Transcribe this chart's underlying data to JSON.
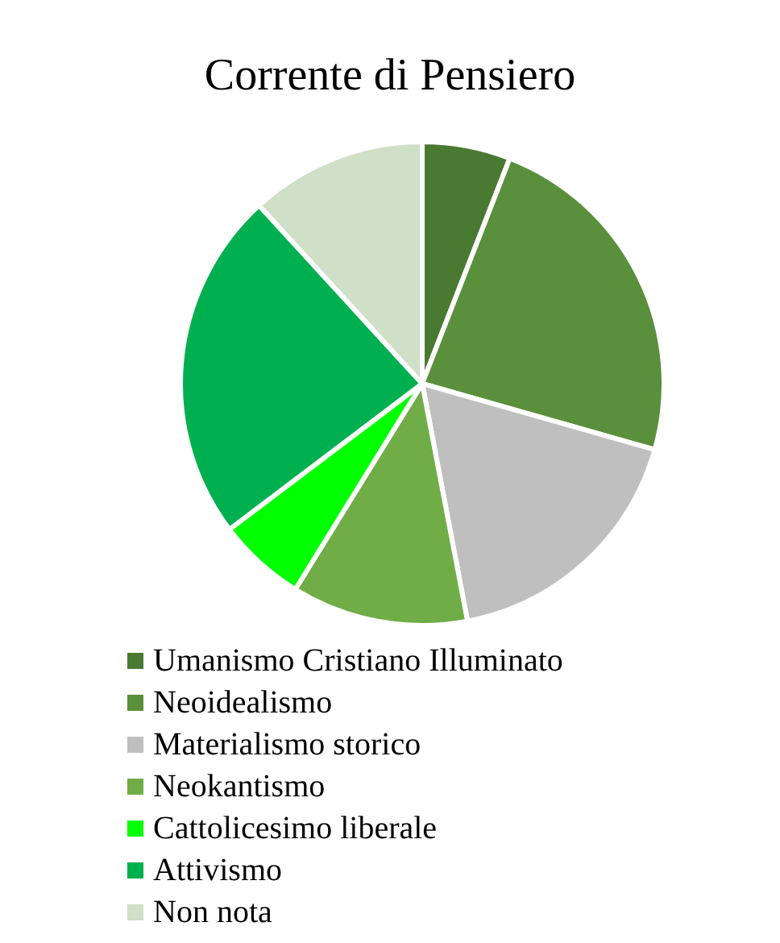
{
  "chart_data": {
    "type": "pie",
    "title": "Corrente di Pensiero",
    "categories": [
      "Umanismo Cristiano Illuminato",
      "Neoidealismo",
      "Materialismo storico",
      "Neokantismo",
      "Cattolicesimo liberale",
      "Attivismo",
      "Non nota"
    ],
    "values": [
      5.9,
      23.5,
      17.6,
      11.8,
      5.9,
      23.5,
      11.8
    ],
    "colors": [
      "#4a7a32",
      "#5a8f3c",
      "#bfbfbf",
      "#70ad47",
      "#00ff00",
      "#00b050",
      "#cfdfc8"
    ],
    "legend": "bottom"
  }
}
